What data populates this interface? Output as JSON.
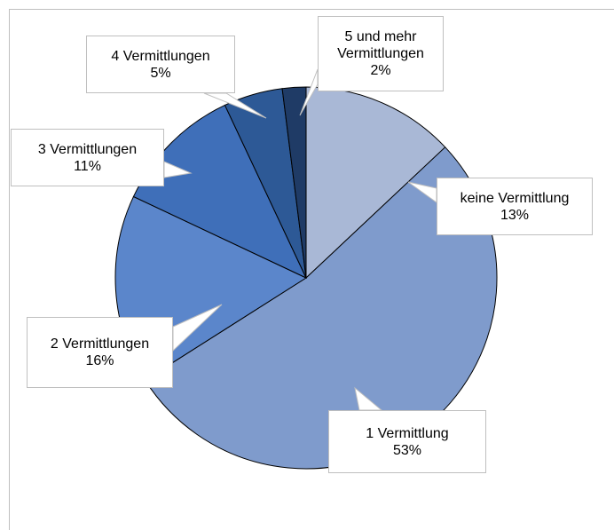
{
  "chart_data": {
    "type": "pie",
    "categories": [
      "keine Vermittlung",
      "1 Vermittlung",
      "2 Vermittlungen",
      "3 Vermittlungen",
      "4 Vermittlungen",
      "5 und mehr Vermittlungen"
    ],
    "values": [
      13,
      53,
      16,
      11,
      5,
      2
    ],
    "value_labels": [
      "13%",
      "53%",
      "16%",
      "11%",
      "5%",
      "2%"
    ],
    "colors": [
      "#a9b8d6",
      "#7f9bcc",
      "#5b86cb",
      "#3f6fb9",
      "#2d5996",
      "#1f3b66"
    ]
  }
}
